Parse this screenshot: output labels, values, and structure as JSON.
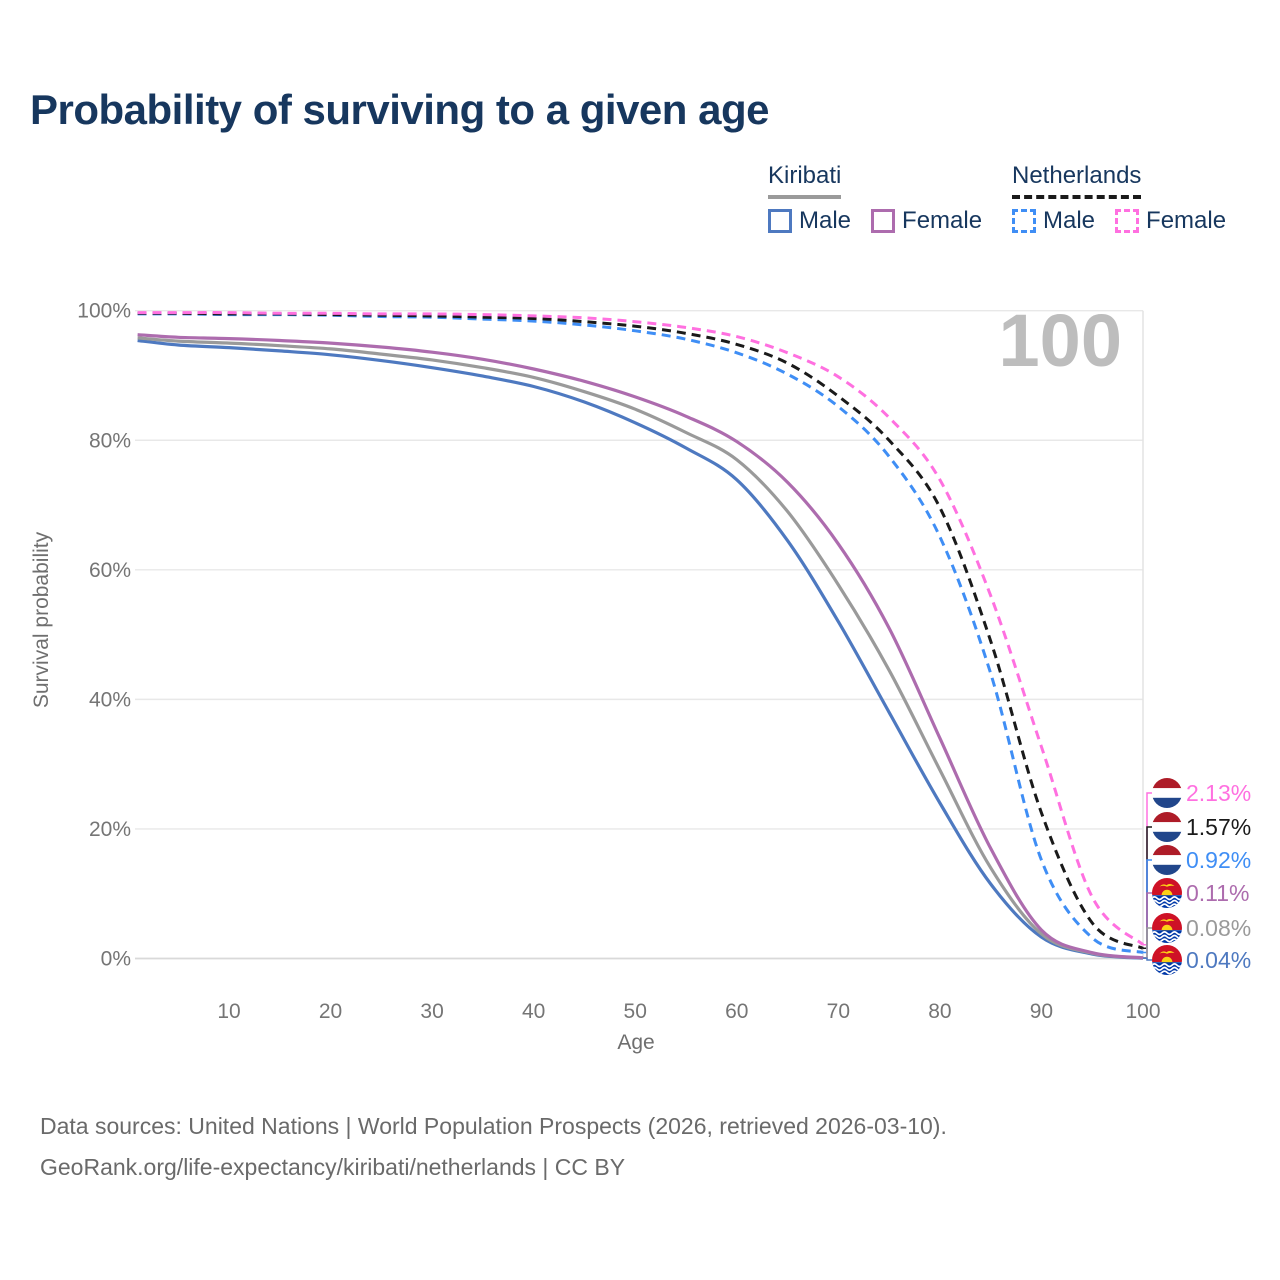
{
  "page": {
    "title": "Probability of surviving to a given age",
    "footer_line1": "Data sources: United Nations | World Population Prospects (2026, retrieved 2026-03-10).",
    "footer_line2": "GeoRank.org/life-expectancy/kiribati/netherlands | CC BY"
  },
  "legend": {
    "groups": [
      {
        "label": "Kiribati",
        "line_style": "solid",
        "underline_color": "#9a9a9a",
        "items": [
          {
            "label": "Male",
            "color": "#4e79c0"
          },
          {
            "label": "Female",
            "color": "#ad6cae"
          }
        ]
      },
      {
        "label": "Netherlands",
        "line_style": "dashed",
        "underline_color": "#1a1a1a",
        "items": [
          {
            "label": "Male",
            "color": "#3f8ef5"
          },
          {
            "label": "Female",
            "color": "#ff70e0"
          }
        ]
      }
    ]
  },
  "chart_data": {
    "type": "line",
    "xlabel": "Age",
    "ylabel": "Survival probability",
    "x_range": [
      1,
      100
    ],
    "y_range": [
      0,
      100
    ],
    "grid": "horizontal-only",
    "legend_position": "top-right",
    "age_counter": "100",
    "x_ticks": [
      {
        "label": "10",
        "value": 10
      },
      {
        "label": "20",
        "value": 20
      },
      {
        "label": "30",
        "value": 30
      },
      {
        "label": "40",
        "value": 40
      },
      {
        "label": "50",
        "value": 50
      },
      {
        "label": "60",
        "value": 60
      },
      {
        "label": "70",
        "value": 70
      },
      {
        "label": "80",
        "value": 80
      },
      {
        "label": "90",
        "value": 90
      },
      {
        "label": "100",
        "value": 100
      }
    ],
    "y_ticks": [
      {
        "label": "0%",
        "value": 0
      },
      {
        "label": "20%",
        "value": 20
      },
      {
        "label": "40%",
        "value": 40
      },
      {
        "label": "60%",
        "value": 60
      },
      {
        "label": "80%",
        "value": 80
      },
      {
        "label": "100%",
        "value": 100
      }
    ],
    "x": [
      1,
      5,
      10,
      15,
      20,
      25,
      30,
      35,
      40,
      45,
      50,
      55,
      60,
      65,
      70,
      75,
      80,
      85,
      90,
      95,
      100
    ],
    "series": [
      {
        "id": "netherlands-female",
        "country": "Netherlands",
        "sex": "Female",
        "color": "#ff70e0",
        "dash": true,
        "flag": "netherlands-flag-icon",
        "end_label": "2.13%",
        "values": [
          99.7,
          99.7,
          99.7,
          99.6,
          99.6,
          99.5,
          99.5,
          99.4,
          99.2,
          98.9,
          98.3,
          97.4,
          96.0,
          93.5,
          89.8,
          83.5,
          73.9,
          56.0,
          32.7,
          9.5,
          2.13
        ]
      },
      {
        "id": "netherlands-both-sexes",
        "country": "Netherlands",
        "sex": "Both",
        "color": "#1a1a1a",
        "dash": true,
        "flag": "netherlands-flag-icon",
        "end_label": "1.57%",
        "values": [
          99.6,
          99.6,
          99.5,
          99.5,
          99.4,
          99.3,
          99.2,
          99.0,
          98.8,
          98.3,
          97.6,
          96.5,
          94.8,
          91.9,
          86.8,
          80.0,
          69.6,
          49.0,
          22.5,
          5.5,
          1.57
        ]
      },
      {
        "id": "netherlands-male",
        "country": "Netherlands",
        "sex": "Male",
        "color": "#3f8ef5",
        "dash": true,
        "flag": "netherlands-flag-icon",
        "end_label": "0.92%",
        "values": [
          99.5,
          99.5,
          99.4,
          99.4,
          99.3,
          99.1,
          99.0,
          98.7,
          98.4,
          97.8,
          96.9,
          95.6,
          93.5,
          90.2,
          85.2,
          77.5,
          65.1,
          44.0,
          15.2,
          3.2,
          0.92
        ]
      },
      {
        "id": "kiribati-female",
        "country": "Kiribati",
        "sex": "Female",
        "color": "#ad6cae",
        "dash": false,
        "flag": "kiribati-flag-icon",
        "end_label": "0.11%",
        "values": [
          96.3,
          95.9,
          95.7,
          95.4,
          95.0,
          94.4,
          93.6,
          92.5,
          91.0,
          89.1,
          86.7,
          83.7,
          79.8,
          73.5,
          64.0,
          51.0,
          34.0,
          17.0,
          4.4,
          0.9,
          0.11
        ]
      },
      {
        "id": "kiribati-both-sexes",
        "country": "Kiribati",
        "sex": "Both",
        "color": "#9a9a9a",
        "dash": false,
        "flag": "kiribati-flag-icon",
        "end_label": "0.08%",
        "values": [
          95.8,
          95.3,
          95.0,
          94.6,
          94.1,
          93.3,
          92.4,
          91.2,
          89.7,
          87.5,
          84.8,
          81.2,
          77.0,
          69.0,
          57.7,
          44.5,
          29.1,
          14.0,
          3.8,
          0.8,
          0.08
        ]
      },
      {
        "id": "kiribati-male",
        "country": "Kiribati",
        "sex": "Male",
        "color": "#4e79c0",
        "dash": false,
        "flag": "kiribati-flag-icon",
        "end_label": "0.04%",
        "values": [
          95.4,
          94.7,
          94.3,
          93.8,
          93.2,
          92.3,
          91.2,
          89.9,
          88.3,
          85.9,
          82.7,
          78.8,
          73.9,
          64.5,
          52.0,
          38.0,
          24.0,
          11.5,
          3.3,
          0.7,
          0.04
        ]
      }
    ],
    "colors": {
      "title": "#17375e",
      "axis_text": "#757575",
      "grid": "#e8e8e8",
      "watermark": "#bdbdbd",
      "netherlands_flag_red": "#AE1C28",
      "netherlands_flag_blue": "#21468B",
      "kiribati_flag_red": "#CE1126",
      "kiribati_flag_blue": "#0038A8",
      "kiribati_flag_gold": "#FCD116"
    }
  }
}
